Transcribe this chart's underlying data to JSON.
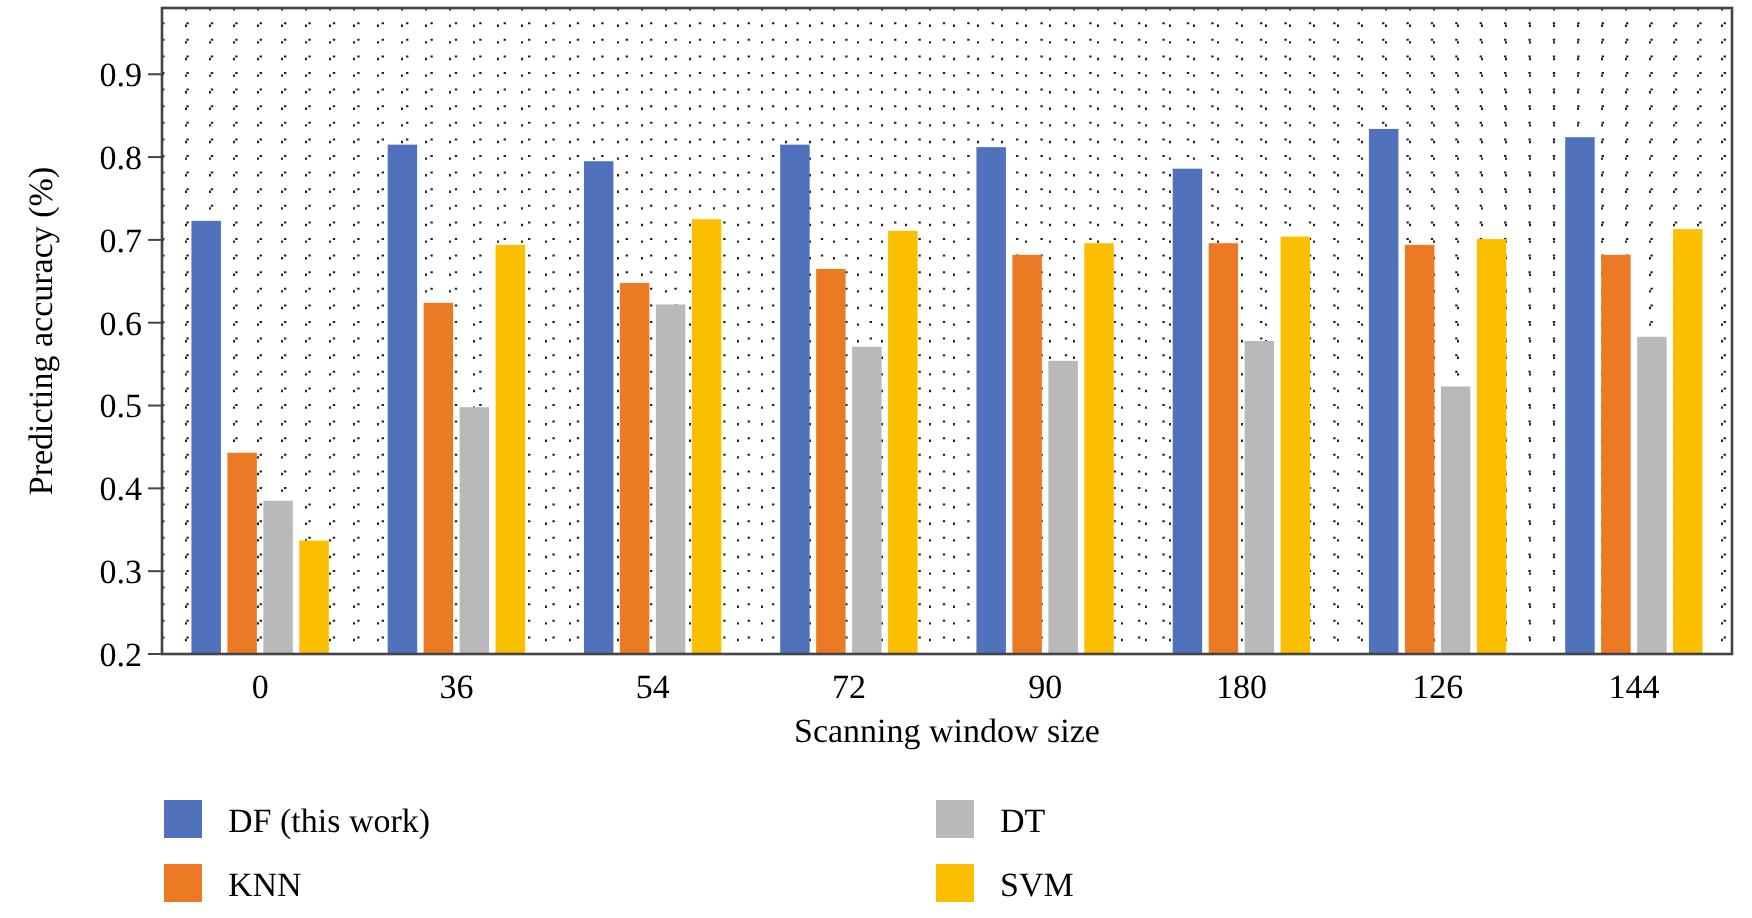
{
  "chart_data": {
    "type": "bar",
    "xlabel": "Scanning window size",
    "ylabel": "Predicting accuracy (%)",
    "categories": [
      "0",
      "36",
      "54",
      "72",
      "90",
      "180",
      "126",
      "144"
    ],
    "series": [
      {
        "name": "DF (this work)",
        "color": "#5072bc",
        "values": [
          0.723,
          0.815,
          0.795,
          0.815,
          0.812,
          0.786,
          0.834,
          0.824
        ]
      },
      {
        "name": "KNN",
        "color": "#ec7a24",
        "values": [
          0.443,
          0.624,
          0.648,
          0.665,
          0.682,
          0.696,
          0.694,
          0.682
        ]
      },
      {
        "name": "DT",
        "color": "#b9b9b9",
        "values": [
          0.385,
          0.498,
          0.622,
          0.571,
          0.554,
          0.578,
          0.523,
          0.583
        ]
      },
      {
        "name": "SVM",
        "color": "#fbbf00",
        "values": [
          0.337,
          0.694,
          0.725,
          0.711,
          0.696,
          0.704,
          0.701,
          0.713
        ]
      }
    ],
    "ylim": [
      0.2,
      0.98
    ],
    "yticks": [
      0.2,
      0.3,
      0.4,
      0.5,
      0.6,
      0.7,
      0.8,
      0.9
    ],
    "grid": true,
    "legend": "bottom"
  }
}
